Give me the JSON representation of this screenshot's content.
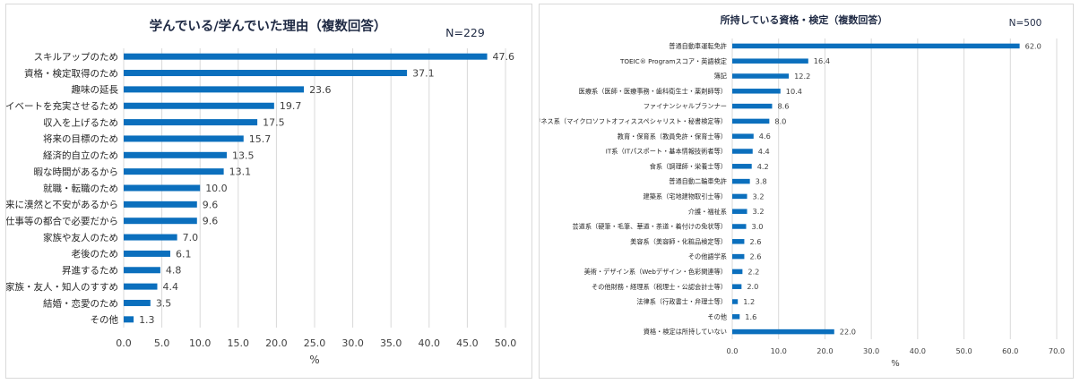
{
  "chart_data": [
    {
      "type": "bar",
      "orientation": "horizontal",
      "title": "学んでいる/学んでいた理由（複数回答）",
      "n_label": "N=229",
      "xlabel": "%",
      "ylabel": "",
      "xlim": [
        0,
        50
      ],
      "ticks": [
        0,
        5,
        10,
        15,
        20,
        25,
        30,
        35,
        40,
        45,
        50
      ],
      "tick_labels": [
        "0.0",
        "5.0",
        "10.0",
        "15.0",
        "20.0",
        "25.0",
        "30.0",
        "35.0",
        "40.0",
        "45.0",
        "50.0"
      ],
      "grid": true,
      "bar_color": "#0b6fbd",
      "categories": [
        "スキルアップのため",
        "資格・検定取得のため",
        "趣味の延長",
        "プライベートを充実させるため",
        "収入を上げるため",
        "将来の目標のため",
        "経済的自立のため",
        "暇な時間があるから",
        "就職・転職のため",
        "将来に漠然と不安があるから",
        "仕事等の都合で必要だから",
        "家族や友人のため",
        "老後のため",
        "昇進するため",
        "家族・友人・知人のすすめ",
        "結婚・恋愛のため",
        "その他"
      ],
      "values": [
        47.6,
        37.1,
        23.6,
        19.7,
        17.5,
        15.7,
        13.5,
        13.1,
        10.0,
        9.6,
        9.6,
        7.0,
        6.1,
        4.8,
        4.4,
        3.5,
        1.3
      ],
      "value_labels": [
        "47.6",
        "37.1",
        "23.6",
        "19.7",
        "17.5",
        "15.7",
        "13.5",
        "13.1",
        "10.0",
        "9.6",
        "9.6",
        "7.0",
        "6.1",
        "4.8",
        "4.4",
        "3.5",
        "1.3"
      ]
    },
    {
      "type": "bar",
      "orientation": "horizontal",
      "title": "所持している資格・検定（複数回答）",
      "n_label": "N=500",
      "xlabel": "%",
      "ylabel": "",
      "xlim": [
        0,
        70
      ],
      "ticks": [
        0,
        10,
        20,
        30,
        40,
        50,
        60,
        70
      ],
      "tick_labels": [
        "0.0",
        "10.0",
        "20.0",
        "30.0",
        "40.0",
        "50.0",
        "60.0",
        "70.0"
      ],
      "grid": true,
      "bar_color": "#0b6fbd",
      "categories": [
        "普通自動車運転免許",
        "TOEIC® Programスコア・英語検定",
        "簿記",
        "医療系（医師・医療事務・歯科衛生士・薬剤師等）",
        "ファイナンシャルプランナー",
        "ビジネス系（マイクロソフトオフィススペシャリスト・秘書検定等）",
        "教育・保育系（教員免許・保育士等）",
        "IT系（ITパスポート・基本情報技術者等）",
        "食系（調理師・栄養士等）",
        "普通自動二輪車免許",
        "建築系（宅地建物取引士等）",
        "介護・福祉系",
        "芸道系（硬筆・毛筆、華道・茶道・着付けの免状等）",
        "美容系（美容師・化粧品検定等）",
        "その他語学系",
        "美術・デザイン系（Webデザイン・色彩関連等）",
        "その他財務・経理系（税理士・公認会計士等）",
        "法律系（行政書士・弁理士等）",
        "その他",
        "資格・検定は所持していない"
      ],
      "values": [
        62.0,
        16.4,
        12.2,
        10.4,
        8.6,
        8.0,
        4.6,
        4.4,
        4.2,
        3.8,
        3.2,
        3.2,
        3.0,
        2.6,
        2.6,
        2.2,
        2.0,
        1.2,
        1.6,
        22.0
      ],
      "value_labels": [
        "62.0",
        "16.4",
        "12.2",
        "10.4",
        "8.6",
        "8.0",
        "4.6",
        "4.4",
        "4.2",
        "3.8",
        "3.2",
        "3.2",
        "3.0",
        "2.6",
        "2.6",
        "2.2",
        "2.0",
        "1.2",
        "1.6",
        "22.0"
      ]
    }
  ]
}
